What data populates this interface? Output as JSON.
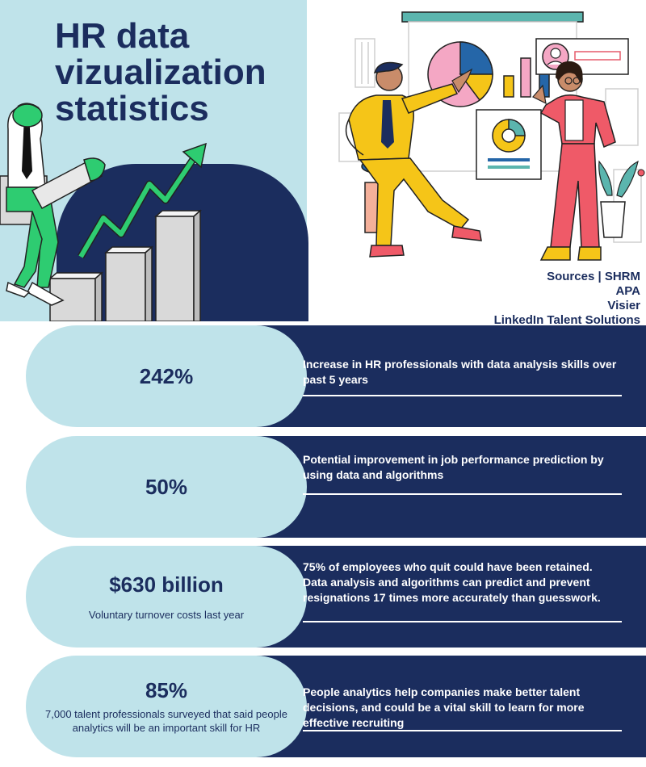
{
  "header": {
    "title": "HR data vizualization statistics"
  },
  "sources": {
    "lines": [
      "Sources | SHRM",
      "APA",
      "Visier",
      "LinkedIn Talent Solutions"
    ]
  },
  "stats": [
    {
      "value": "242%",
      "subtitle": "",
      "description": "Increase in HR professionals with data analysis skills over past 5 years"
    },
    {
      "value": "50%",
      "subtitle": "",
      "description": "Potential improvement in  job performance prediction by using data and algorithms"
    },
    {
      "value": "$630 billion",
      "subtitle": "Voluntary turnover costs last year",
      "description": "75% of employees who quit could have been retained. Data analysis and algorithms can predict and prevent resignations 17 times more accurately than guesswork."
    },
    {
      "value": "85%",
      "subtitle": "7,000 talent professionals surveyed that said people analytics will be an important skill for HR",
      "description": "People analytics help companies make better talent decisions, and could be a vital skill to learn for more effective recruiting"
    }
  ],
  "colors": {
    "navy": "#1b2d5e",
    "light_blue": "#bfe3ea",
    "green_accent": "#2ecc71",
    "yellow_suit": "#f5c518",
    "coral_pants": "#ef5a68"
  },
  "icons": [
    "growth-arrow-icon",
    "pie-chart-icon",
    "donut-chart-icon",
    "profile-card-icon"
  ]
}
